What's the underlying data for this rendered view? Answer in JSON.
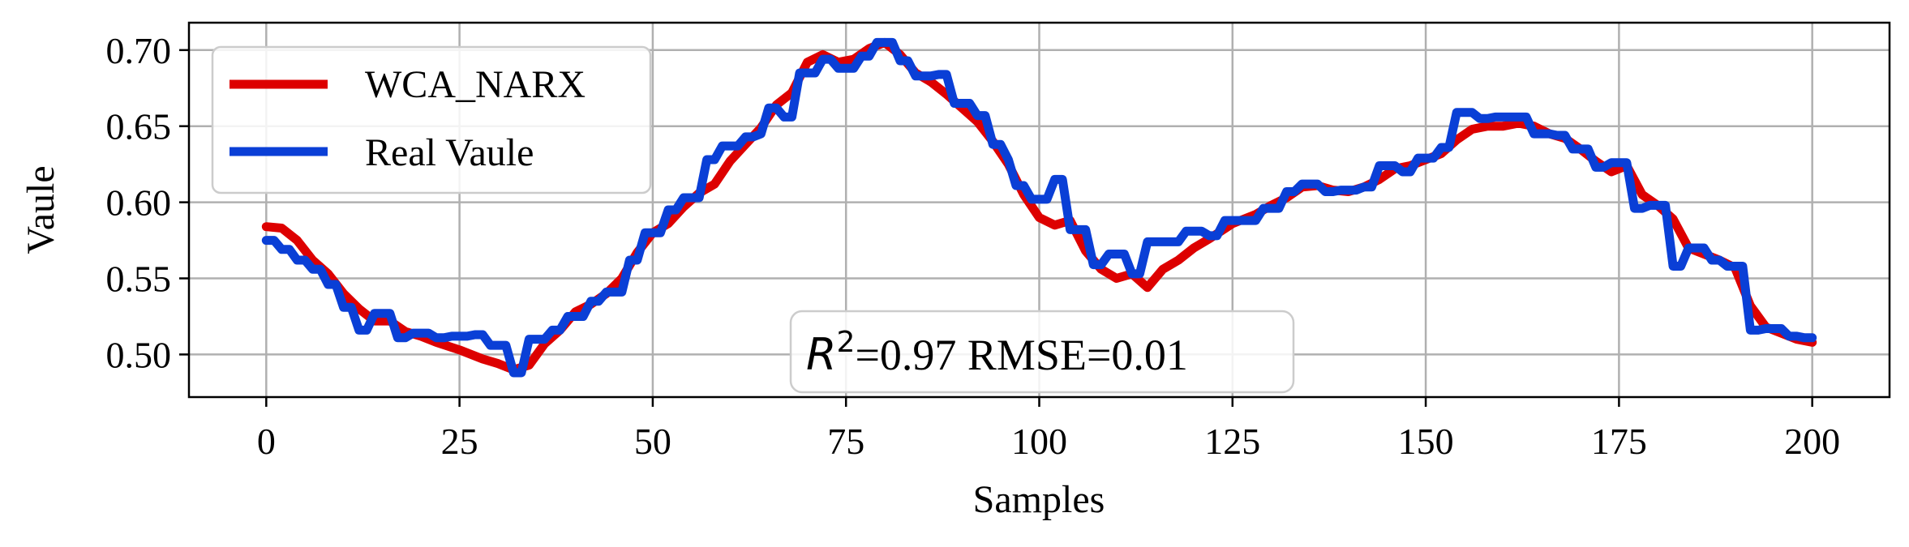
{
  "chart_data": {
    "type": "line",
    "title": "",
    "xlabel": "Samples",
    "ylabel": "Vaule",
    "xlim": [
      -10,
      210
    ],
    "ylim": [
      0.472,
      0.718
    ],
    "xticks": [
      0,
      25,
      50,
      75,
      100,
      125,
      150,
      175,
      200
    ],
    "xtick_labels": [
      "0",
      "25",
      "50",
      "75",
      "100",
      "125",
      "150",
      "175",
      "200"
    ],
    "yticks": [
      0.5,
      0.55,
      0.6,
      0.65,
      0.7
    ],
    "ytick_labels": [
      "0.50",
      "0.55",
      "0.60",
      "0.65",
      "0.70"
    ],
    "grid": true,
    "legend_position": "top-left",
    "annotation": {
      "r2_symbol": "R",
      "r2_superscript": "2",
      "text": "=0.97 RMSE=0.01"
    },
    "series": [
      {
        "name": "WCA_NARX",
        "color": "#dd0000",
        "points": [
          [
            0,
            0.584
          ],
          [
            2,
            0.583
          ],
          [
            4,
            0.575
          ],
          [
            6,
            0.562
          ],
          [
            8,
            0.553
          ],
          [
            10,
            0.54
          ],
          [
            12,
            0.53
          ],
          [
            14,
            0.522
          ],
          [
            16,
            0.522
          ],
          [
            18,
            0.515
          ],
          [
            20,
            0.512
          ],
          [
            22,
            0.508
          ],
          [
            25,
            0.503
          ],
          [
            28,
            0.497
          ],
          [
            30,
            0.494
          ],
          [
            32,
            0.49
          ],
          [
            34,
            0.493
          ],
          [
            36,
            0.507
          ],
          [
            38,
            0.516
          ],
          [
            40,
            0.528
          ],
          [
            42,
            0.533
          ],
          [
            44,
            0.54
          ],
          [
            46,
            0.55
          ],
          [
            48,
            0.567
          ],
          [
            50,
            0.58
          ],
          [
            52,
            0.586
          ],
          [
            54,
            0.597
          ],
          [
            56,
            0.606
          ],
          [
            58,
            0.612
          ],
          [
            60,
            0.627
          ],
          [
            62,
            0.638
          ],
          [
            64,
            0.649
          ],
          [
            66,
            0.664
          ],
          [
            68,
            0.672
          ],
          [
            70,
            0.692
          ],
          [
            72,
            0.697
          ],
          [
            74,
            0.692
          ],
          [
            76,
            0.694
          ],
          [
            78,
            0.701
          ],
          [
            80,
            0.705
          ],
          [
            82,
            0.697
          ],
          [
            84,
            0.685
          ],
          [
            86,
            0.679
          ],
          [
            88,
            0.671
          ],
          [
            90,
            0.662
          ],
          [
            92,
            0.653
          ],
          [
            94,
            0.64
          ],
          [
            96,
            0.625
          ],
          [
            98,
            0.605
          ],
          [
            100,
            0.59
          ],
          [
            102,
            0.585
          ],
          [
            104,
            0.588
          ],
          [
            106,
            0.568
          ],
          [
            108,
            0.556
          ],
          [
            110,
            0.55
          ],
          [
            112,
            0.553
          ],
          [
            114,
            0.544
          ],
          [
            116,
            0.556
          ],
          [
            118,
            0.562
          ],
          [
            120,
            0.57
          ],
          [
            122,
            0.576
          ],
          [
            125,
            0.586
          ],
          [
            128,
            0.592
          ],
          [
            130,
            0.598
          ],
          [
            132,
            0.603
          ],
          [
            134,
            0.61
          ],
          [
            136,
            0.611
          ],
          [
            138,
            0.608
          ],
          [
            140,
            0.607
          ],
          [
            142,
            0.61
          ],
          [
            144,
            0.615
          ],
          [
            146,
            0.622
          ],
          [
            148,
            0.624
          ],
          [
            150,
            0.628
          ],
          [
            152,
            0.632
          ],
          [
            154,
            0.641
          ],
          [
            156,
            0.648
          ],
          [
            158,
            0.65
          ],
          [
            160,
            0.65
          ],
          [
            162,
            0.652
          ],
          [
            164,
            0.65
          ],
          [
            166,
            0.645
          ],
          [
            168,
            0.642
          ],
          [
            170,
            0.635
          ],
          [
            172,
            0.627
          ],
          [
            174,
            0.62
          ],
          [
            176,
            0.624
          ],
          [
            178,
            0.605
          ],
          [
            180,
            0.598
          ],
          [
            182,
            0.589
          ],
          [
            184,
            0.57
          ],
          [
            186,
            0.566
          ],
          [
            188,
            0.562
          ],
          [
            190,
            0.557
          ],
          [
            192,
            0.532
          ],
          [
            194,
            0.518
          ],
          [
            196,
            0.514
          ],
          [
            198,
            0.51
          ],
          [
            200,
            0.508
          ]
        ]
      },
      {
        "name": "Real Vaule",
        "color": "#0a3fd6",
        "points": [
          [
            0,
            0.575
          ],
          [
            1,
            0.575
          ],
          [
            2,
            0.569
          ],
          [
            3,
            0.569
          ],
          [
            4,
            0.562
          ],
          [
            5,
            0.562
          ],
          [
            6,
            0.556
          ],
          [
            7,
            0.556
          ],
          [
            8,
            0.546
          ],
          [
            9,
            0.546
          ],
          [
            10,
            0.531
          ],
          [
            11,
            0.531
          ],
          [
            12,
            0.516
          ],
          [
            13,
            0.516
          ],
          [
            14,
            0.527
          ],
          [
            15,
            0.527
          ],
          [
            16,
            0.527
          ],
          [
            17,
            0.511
          ],
          [
            18,
            0.511
          ],
          [
            19,
            0.514
          ],
          [
            20,
            0.514
          ],
          [
            21,
            0.514
          ],
          [
            22,
            0.511
          ],
          [
            23,
            0.511
          ],
          [
            24,
            0.512
          ],
          [
            25,
            0.512
          ],
          [
            26,
            0.512
          ],
          [
            27,
            0.513
          ],
          [
            28,
            0.513
          ],
          [
            29,
            0.506
          ],
          [
            30,
            0.506
          ],
          [
            31,
            0.506
          ],
          [
            32,
            0.488
          ],
          [
            33,
            0.488
          ],
          [
            34,
            0.51
          ],
          [
            35,
            0.51
          ],
          [
            36,
            0.51
          ],
          [
            37,
            0.516
          ],
          [
            38,
            0.516
          ],
          [
            39,
            0.525
          ],
          [
            40,
            0.525
          ],
          [
            41,
            0.525
          ],
          [
            42,
            0.535
          ],
          [
            43,
            0.535
          ],
          [
            44,
            0.541
          ],
          [
            45,
            0.541
          ],
          [
            46,
            0.541
          ],
          [
            47,
            0.562
          ],
          [
            48,
            0.562
          ],
          [
            49,
            0.58
          ],
          [
            50,
            0.58
          ],
          [
            51,
            0.58
          ],
          [
            52,
            0.595
          ],
          [
            53,
            0.595
          ],
          [
            54,
            0.603
          ],
          [
            55,
            0.603
          ],
          [
            56,
            0.603
          ],
          [
            57,
            0.628
          ],
          [
            58,
            0.628
          ],
          [
            59,
            0.637
          ],
          [
            60,
            0.637
          ],
          [
            61,
            0.637
          ],
          [
            62,
            0.643
          ],
          [
            63,
            0.643
          ],
          [
            64,
            0.645
          ],
          [
            65,
            0.662
          ],
          [
            66,
            0.662
          ],
          [
            67,
            0.656
          ],
          [
            68,
            0.656
          ],
          [
            69,
            0.685
          ],
          [
            70,
            0.685
          ],
          [
            71,
            0.685
          ],
          [
            72,
            0.694
          ],
          [
            73,
            0.694
          ],
          [
            74,
            0.688
          ],
          [
            75,
            0.688
          ],
          [
            76,
            0.688
          ],
          [
            77,
            0.696
          ],
          [
            78,
            0.696
          ],
          [
            79,
            0.705
          ],
          [
            80,
            0.705
          ],
          [
            81,
            0.705
          ],
          [
            82,
            0.693
          ],
          [
            83,
            0.693
          ],
          [
            84,
            0.683
          ],
          [
            85,
            0.683
          ],
          [
            86,
            0.683
          ],
          [
            87,
            0.684
          ],
          [
            88,
            0.684
          ],
          [
            89,
            0.665
          ],
          [
            90,
            0.665
          ],
          [
            91,
            0.665
          ],
          [
            92,
            0.657
          ],
          [
            93,
            0.657
          ],
          [
            94,
            0.638
          ],
          [
            95,
            0.638
          ],
          [
            96,
            0.628
          ],
          [
            97,
            0.611
          ],
          [
            98,
            0.611
          ],
          [
            99,
            0.602
          ],
          [
            100,
            0.602
          ],
          [
            101,
            0.602
          ],
          [
            102,
            0.615
          ],
          [
            103,
            0.615
          ],
          [
            104,
            0.582
          ],
          [
            105,
            0.582
          ],
          [
            106,
            0.582
          ],
          [
            107,
            0.559
          ],
          [
            108,
            0.559
          ],
          [
            109,
            0.566
          ],
          [
            110,
            0.566
          ],
          [
            111,
            0.566
          ],
          [
            112,
            0.553
          ],
          [
            113,
            0.553
          ],
          [
            114,
            0.574
          ],
          [
            115,
            0.574
          ],
          [
            116,
            0.574
          ],
          [
            117,
            0.574
          ],
          [
            118,
            0.574
          ],
          [
            119,
            0.581
          ],
          [
            120,
            0.581
          ],
          [
            121,
            0.581
          ],
          [
            122,
            0.578
          ],
          [
            123,
            0.578
          ],
          [
            124,
            0.588
          ],
          [
            125,
            0.588
          ],
          [
            126,
            0.588
          ],
          [
            127,
            0.588
          ],
          [
            128,
            0.588
          ],
          [
            129,
            0.596
          ],
          [
            130,
            0.596
          ],
          [
            131,
            0.596
          ],
          [
            132,
            0.607
          ],
          [
            133,
            0.607
          ],
          [
            134,
            0.612
          ],
          [
            135,
            0.612
          ],
          [
            136,
            0.612
          ],
          [
            137,
            0.607
          ],
          [
            138,
            0.607
          ],
          [
            139,
            0.608
          ],
          [
            140,
            0.608
          ],
          [
            141,
            0.608
          ],
          [
            142,
            0.61
          ],
          [
            143,
            0.61
          ],
          [
            144,
            0.624
          ],
          [
            145,
            0.624
          ],
          [
            146,
            0.624
          ],
          [
            147,
            0.62
          ],
          [
            148,
            0.62
          ],
          [
            149,
            0.629
          ],
          [
            150,
            0.629
          ],
          [
            151,
            0.629
          ],
          [
            152,
            0.636
          ],
          [
            153,
            0.636
          ],
          [
            154,
            0.659
          ],
          [
            155,
            0.659
          ],
          [
            156,
            0.659
          ],
          [
            157,
            0.655
          ],
          [
            158,
            0.655
          ],
          [
            159,
            0.656
          ],
          [
            160,
            0.656
          ],
          [
            161,
            0.656
          ],
          [
            162,
            0.656
          ],
          [
            163,
            0.656
          ],
          [
            164,
            0.645
          ],
          [
            165,
            0.645
          ],
          [
            166,
            0.645
          ],
          [
            167,
            0.644
          ],
          [
            168,
            0.644
          ],
          [
            169,
            0.635
          ],
          [
            170,
            0.635
          ],
          [
            171,
            0.635
          ],
          [
            172,
            0.623
          ],
          [
            173,
            0.623
          ],
          [
            174,
            0.626
          ],
          [
            175,
            0.626
          ],
          [
            176,
            0.626
          ],
          [
            177,
            0.596
          ],
          [
            178,
            0.596
          ],
          [
            179,
            0.598
          ],
          [
            180,
            0.598
          ],
          [
            181,
            0.598
          ],
          [
            182,
            0.558
          ],
          [
            183,
            0.558
          ],
          [
            184,
            0.57
          ],
          [
            185,
            0.57
          ],
          [
            186,
            0.57
          ],
          [
            187,
            0.562
          ],
          [
            188,
            0.562
          ],
          [
            189,
            0.558
          ],
          [
            190,
            0.558
          ],
          [
            191,
            0.558
          ],
          [
            192,
            0.516
          ],
          [
            193,
            0.516
          ],
          [
            194,
            0.517
          ],
          [
            195,
            0.517
          ],
          [
            196,
            0.517
          ],
          [
            197,
            0.512
          ],
          [
            198,
            0.512
          ],
          [
            199,
            0.511
          ],
          [
            200,
            0.511
          ]
        ]
      }
    ]
  }
}
